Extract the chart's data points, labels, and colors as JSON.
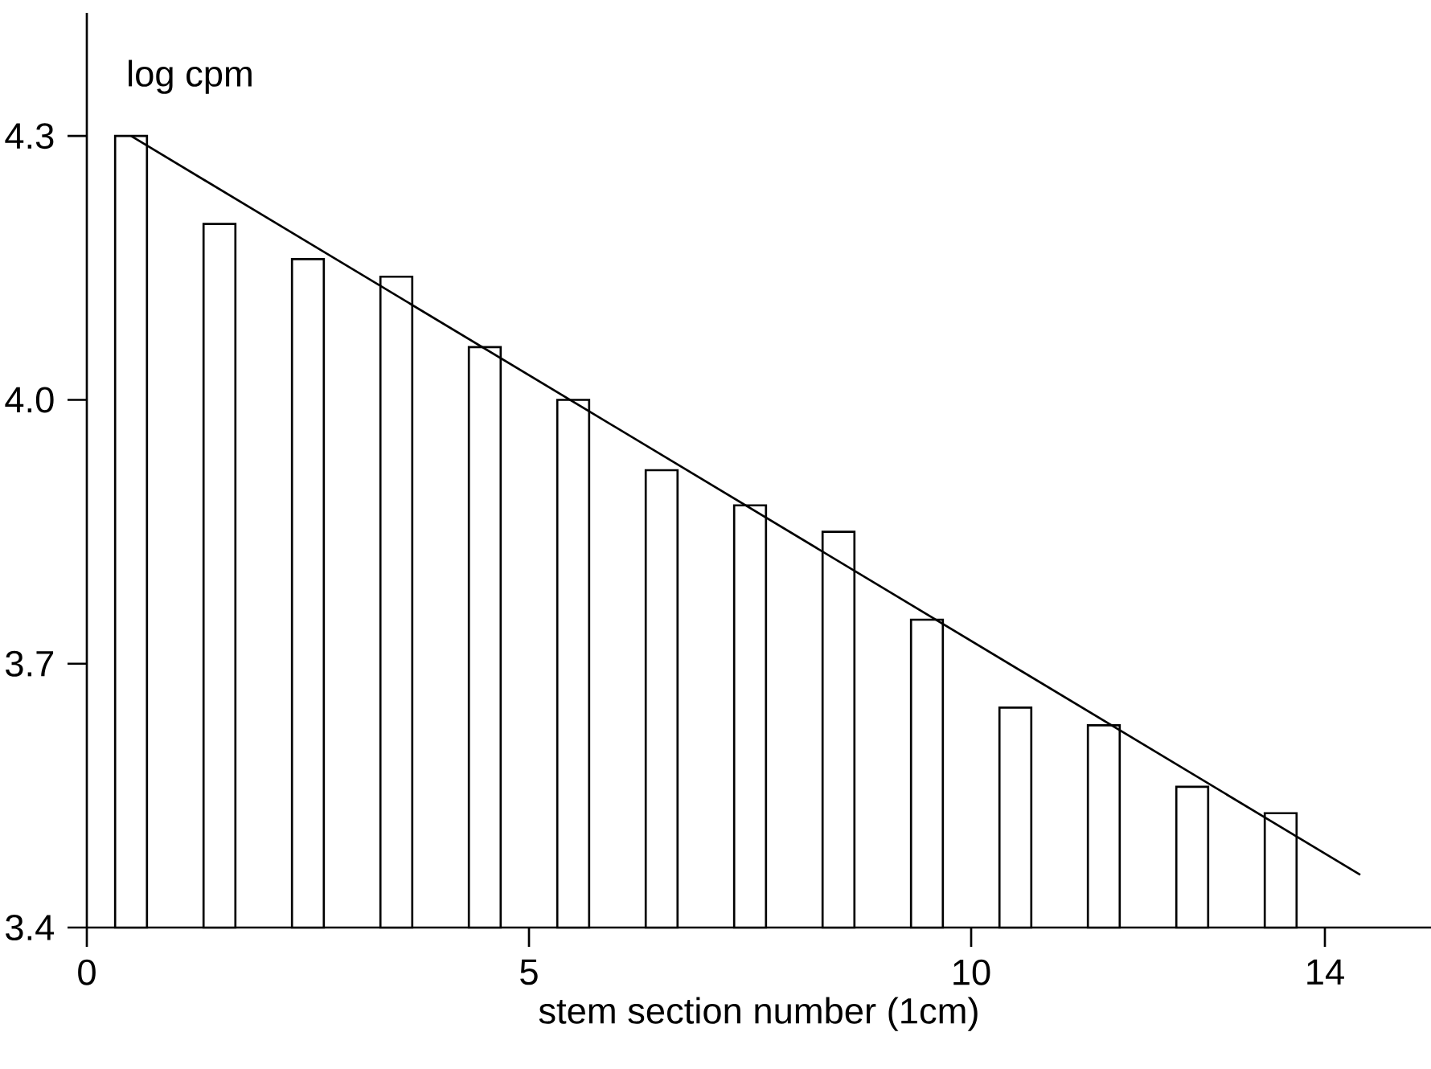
{
  "chart_data": {
    "type": "bar",
    "xlabel": "stem section number (1cm)",
    "ylabel": "log cpm",
    "xlim": [
      0,
      15.2
    ],
    "ylim": [
      3.4,
      4.44
    ],
    "xticks": [
      0,
      5,
      10,
      14
    ],
    "yticks": [
      3.4,
      3.7,
      {
        "value": 4.0,
        "label": "4.0"
      },
      4.3
    ],
    "series": [
      {
        "color": "#ffffff",
        "x": [
          0.5,
          1.5,
          2.5,
          3.5,
          4.5,
          5.5,
          6.5,
          7.5,
          8.5,
          9.5,
          10.5,
          11.5,
          12.5,
          13.5
        ],
        "values": [
          4.3,
          4.2,
          4.16,
          4.14,
          4.06,
          4.0,
          3.92,
          3.88,
          3.85,
          3.75,
          3.65,
          3.63,
          3.56,
          3.53
        ]
      },
      {
        "type": "line",
        "color": "#000000",
        "x": [
          0.5,
          14.4
        ],
        "values": [
          4.3,
          3.46
        ]
      }
    ]
  }
}
